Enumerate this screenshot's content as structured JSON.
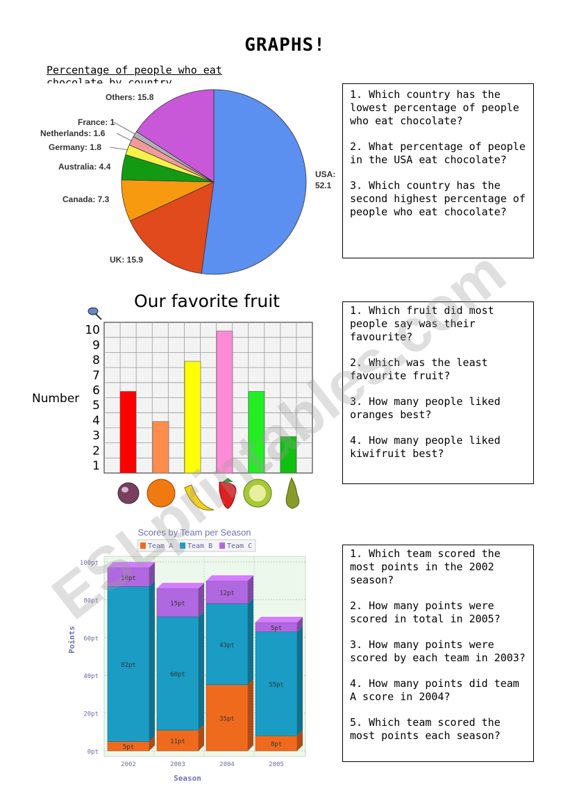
{
  "title": "GRAPHS!",
  "pie": {
    "caption_line1": "Percentage of people who eat",
    "caption_line2": "chocolate by country"
  },
  "fruit": {
    "title": "Our favorite fruit",
    "ylabel": "Number"
  },
  "scores": {
    "title": "Scores by Team per Season",
    "ylabel": "Points",
    "xlabel": "Season"
  },
  "questions": {
    "box1": [
      "1. Which country has the lowest percentage of people who eat chocolate?",
      "2. What percentage of people in the USA eat chocolate?",
      "3. Which country has the second highest percentage of people who eat chocolate?"
    ],
    "box2": [
      "1. Which fruit did most people say was their favourite?",
      "2. Which was the least favourite fruit?",
      "3. How many people liked oranges best?",
      "4. How many people liked kiwifruit best?"
    ],
    "box3": [
      "1. Which team scored the most points in the 2002 season?",
      "2. How many points were scored in total in 2005?",
      "3. How many points were scored by each team in 2003?",
      "4. How many points did team A score in  2004?",
      "5. Which team scored the most points each season?"
    ]
  },
  "watermark": "ESLprintables.com",
  "chart_data": [
    {
      "type": "pie",
      "title": "",
      "slices": [
        {
          "label": "USA",
          "value": 52.1,
          "color": "#5b8ff0"
        },
        {
          "label": "UK",
          "value": 15.9,
          "color": "#e04a1c"
        },
        {
          "label": "Canada",
          "value": 7.3,
          "color": "#f79a0f"
        },
        {
          "label": "Australia",
          "value": 4.4,
          "color": "#129a12"
        },
        {
          "label": "Germany",
          "value": 1.8,
          "color": "#f4f24a"
        },
        {
          "label": "Netherlands",
          "value": 1.6,
          "color": "#f29a9a"
        },
        {
          "label": "France",
          "value": 1,
          "color": "#b0b0b8"
        },
        {
          "label": "Others",
          "value": 15.8,
          "color": "#c858d8"
        }
      ]
    },
    {
      "type": "bar",
      "title": "Our favorite fruit",
      "ylabel": "Number",
      "ylim": [
        0,
        10
      ],
      "yticks": [
        1,
        2,
        3,
        4,
        5,
        6,
        7,
        8,
        9,
        10
      ],
      "categories": [
        "plum",
        "orange",
        "banana",
        "strawberry",
        "kiwifruit",
        "pear"
      ],
      "values": [
        5,
        3,
        7,
        9,
        5,
        2
      ],
      "colors": [
        "#ff0000",
        "#ff8c4a",
        "#ffff00",
        "#ff8ad8",
        "#22ee22",
        "#10c010"
      ]
    },
    {
      "type": "bar",
      "stacked": true,
      "title": "Scores by Team per Season",
      "xlabel": "Season",
      "ylabel": "Points",
      "ylim": [
        0,
        100
      ],
      "yticks": [
        "0pt",
        "20pt",
        "40pt",
        "60pt",
        "80pt",
        "100pt"
      ],
      "categories": [
        "2002",
        "2003",
        "2004",
        "2005"
      ],
      "series": [
        {
          "name": "Team A",
          "values": [
            5,
            11,
            35,
            8
          ],
          "labels": [
            "5pt",
            "11pt",
            "35pt",
            "8pt"
          ],
          "color": "#f06a1e"
        },
        {
          "name": "Team B",
          "values": [
            82,
            60,
            43,
            55
          ],
          "labels": [
            "82pt",
            "60pt",
            "43pt",
            "55pt"
          ],
          "color": "#1a9cc4"
        },
        {
          "name": "Team C",
          "values": [
            10,
            15,
            12,
            5
          ],
          "labels": [
            "10pt",
            "15pt",
            "12pt",
            "5pt"
          ],
          "color": "#b068e0"
        }
      ]
    }
  ]
}
